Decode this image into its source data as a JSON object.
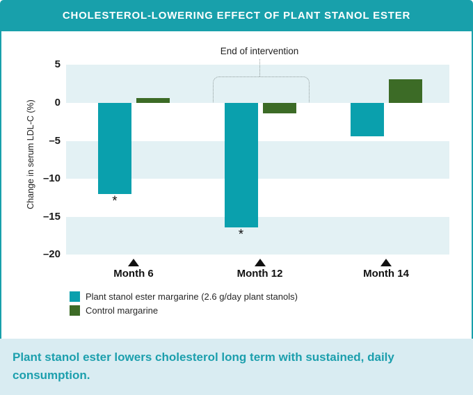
{
  "header": {
    "title": "CHOLESTEROL-LOWERING EFFECT OF PLANT STANOL ESTER"
  },
  "chart_data": {
    "type": "bar",
    "categories": [
      "Month 6",
      "Month 12",
      "Month 14"
    ],
    "series": [
      {
        "name": "Plant stanol ester margarine (2.6 g/day plant stanols)",
        "color": "#0AA0AD",
        "values": [
          -12,
          -16.4,
          -4.4
        ],
        "significance": [
          true,
          true,
          false
        ]
      },
      {
        "name": "Control margarine",
        "color": "#3C6B26",
        "values": [
          0.6,
          -1.4,
          3.1
        ],
        "significance": [
          false,
          false,
          false
        ]
      }
    ],
    "ylabel": "Change in serum LDL-C (%)",
    "yticks": [
      5,
      0,
      -5,
      -10,
      -15,
      -20
    ],
    "ylim": [
      -20,
      5
    ],
    "grid": "striped-bands-every-5",
    "legend_position": "bottom-left",
    "significance_marker": "*",
    "annotation": {
      "text": "End of intervention",
      "target_category": "Month 12"
    },
    "x_axis_markers": "black-up-triangles"
  },
  "caption": {
    "text": "Plant stanol ester lowers cholesterol long term with sustained, daily consumption."
  },
  "colors": {
    "accent_teal": "#18A0AB",
    "bar_teal": "#0AA0AD",
    "bar_green": "#3C6B26",
    "stripe": "#E3F1F4",
    "caption_bg": "#D9ECF2",
    "caption_text": "#1C9FAD"
  }
}
